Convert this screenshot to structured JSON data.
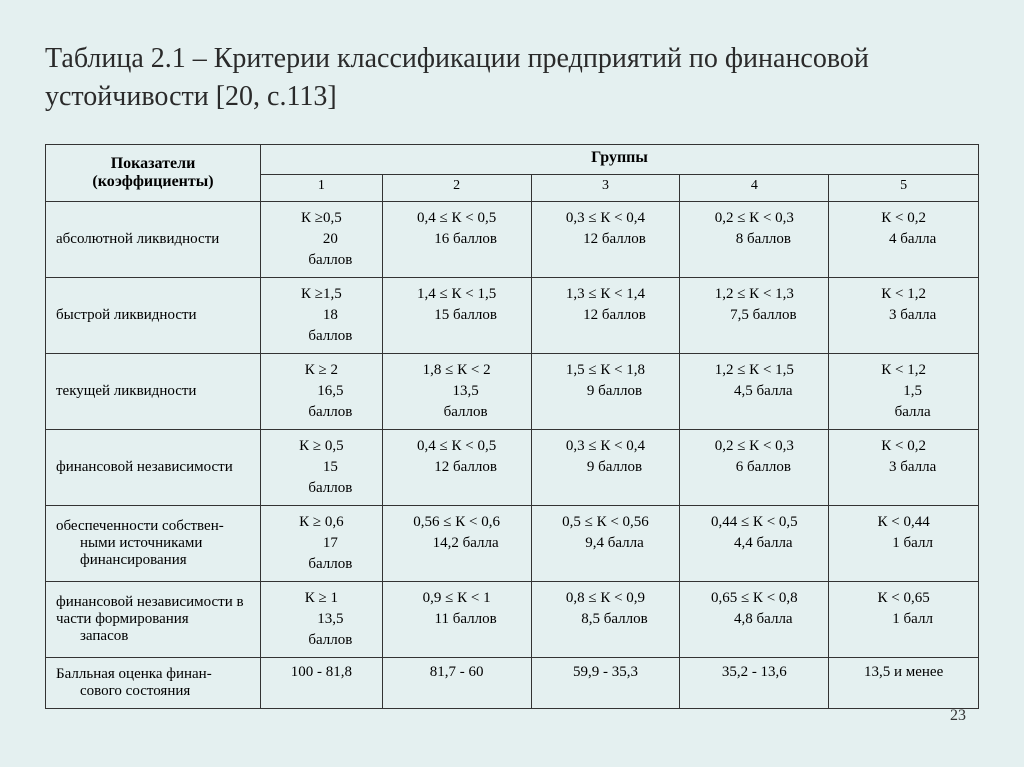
{
  "title": "Таблица 2.1 – Критерии классификации предприятий по финансовой устойчивости [20, с.113]",
  "header": {
    "indicator": "Показатели (коэффициенты)",
    "groups": "Группы",
    "nums": [
      "1",
      "2",
      "3",
      "4",
      "5"
    ]
  },
  "rows": [
    {
      "label": "абсолютной ликвидности",
      "label2": "",
      "cells": [
        {
          "cond": "К ≥0,5",
          "score": "20",
          "score2": "баллов"
        },
        {
          "cond": "0,4 ≤ К < 0,5",
          "score": "16 баллов",
          "score2": ""
        },
        {
          "cond": "0,3 ≤ К < 0,4",
          "score": "12 баллов",
          "score2": ""
        },
        {
          "cond": "0,2 ≤ К < 0,3",
          "score": "8 баллов",
          "score2": ""
        },
        {
          "cond": "К < 0,2",
          "score": "4 балла",
          "score2": ""
        }
      ]
    },
    {
      "label": "быстрой ликвидности",
      "label2": "",
      "cells": [
        {
          "cond": "К ≥1,5",
          "score": "18",
          "score2": "баллов"
        },
        {
          "cond": "1,4 ≤ К < 1,5",
          "score": "15 баллов",
          "score2": ""
        },
        {
          "cond": "1,3 ≤ К < 1,4",
          "score": "12 баллов",
          "score2": ""
        },
        {
          "cond": "1,2 ≤ К < 1,3",
          "score": "7,5 баллов",
          "score2": ""
        },
        {
          "cond": "К < 1,2",
          "score": "3 балла",
          "score2": ""
        }
      ]
    },
    {
      "label": "текущей ликвидности",
      "label2": "",
      "cells": [
        {
          "cond": "К ≥ 2",
          "score": "16,5",
          "score2": "баллов"
        },
        {
          "cond": "1,8 ≤ К < 2",
          "score": "13,5",
          "score2": "баллов"
        },
        {
          "cond": "1,5 ≤ К < 1,8",
          "score": "9 баллов",
          "score2": ""
        },
        {
          "cond": "1,2 ≤ К < 1,5",
          "score": "4,5 балла",
          "score2": ""
        },
        {
          "cond": "К < 1,2",
          "score": "1,5",
          "score2": "балла"
        }
      ]
    },
    {
      "label": "финансовой независимости",
      "label2": "",
      "cells": [
        {
          "cond": "К ≥ 0,5",
          "score": "15",
          "score2": "баллов"
        },
        {
          "cond": "0,4 ≤ К < 0,5",
          "score": "12 баллов",
          "score2": ""
        },
        {
          "cond": "0,3 ≤ К < 0,4",
          "score": "9 баллов",
          "score2": ""
        },
        {
          "cond": "0,2 ≤ К < 0,3",
          "score": "6 баллов",
          "score2": ""
        },
        {
          "cond": "К < 0,2",
          "score": "3 балла",
          "score2": ""
        }
      ]
    },
    {
      "label": "обеспеченности собствен-",
      "label2": "ными источниками финансирования",
      "cells": [
        {
          "cond": "К ≥ 0,6",
          "score": "17",
          "score2": "баллов"
        },
        {
          "cond": "0,56 ≤ К < 0,6",
          "score": "14,2 балла",
          "score2": ""
        },
        {
          "cond": "0,5 ≤ К < 0,56",
          "score": "9,4 балла",
          "score2": ""
        },
        {
          "cond": "0,44 ≤ К < 0,5",
          "score": "4,4 балла",
          "score2": ""
        },
        {
          "cond": "К < 0,44",
          "score": "1 балл",
          "score2": ""
        }
      ]
    },
    {
      "label": "финансовой независимости в части формирования",
      "label2": "запасов",
      "cells": [
        {
          "cond": "К ≥ 1",
          "score": "13,5",
          "score2": "баллов"
        },
        {
          "cond": "0,9 ≤ К < 1",
          "score": "11 баллов",
          "score2": ""
        },
        {
          "cond": "0,8 ≤ К < 0,9",
          "score": "8,5 баллов",
          "score2": ""
        },
        {
          "cond": "0,65 ≤ К < 0,8",
          "score": "4,8 балла",
          "score2": ""
        },
        {
          "cond": "К < 0,65",
          "score": "1 балл",
          "score2": ""
        }
      ]
    }
  ],
  "summary": {
    "label": "Балльная оценка финан-",
    "label2": "сового состояния",
    "cells": [
      "100 - 81,8",
      "81,7 - 60",
      "59,9 - 35,3",
      "35,2 - 13,6",
      "13,5 и менее"
    ]
  },
  "pageNum": "23"
}
